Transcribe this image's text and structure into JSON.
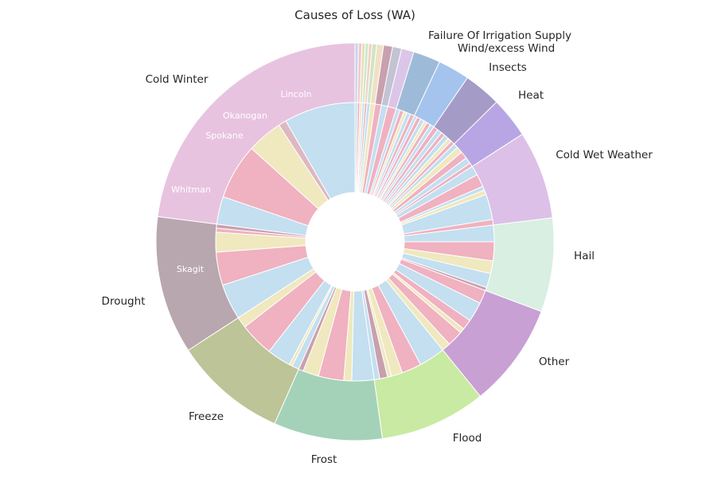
{
  "chart_data": {
    "type": "pie",
    "title": "Causes of Loss (WA)",
    "outer_ring": [
      {
        "label": "Cold Winter",
        "value": 25.0,
        "color": "#e8c3e0"
      },
      {
        "label": "Drought",
        "value": 12.2,
        "color": "#b8a7ae"
      },
      {
        "label": "Freeze",
        "value": 10.0,
        "color": "#bcc498"
      },
      {
        "label": "Frost",
        "value": 9.6,
        "color": "#a4d2b9"
      },
      {
        "label": "Flood",
        "value": 9.4,
        "color": "#c9eaa2"
      },
      {
        "label": "Other",
        "value": 9.2,
        "color": "#c8a0d4"
      },
      {
        "label": "Hail",
        "value": 8.3,
        "color": "#d8efe2"
      },
      {
        "label": "Cold Wet Weather",
        "value": 7.8,
        "color": "#dcc0e8"
      },
      {
        "label": "Heat",
        "value": 3.6,
        "color": "#b8a6e4"
      },
      {
        "label": "Insects",
        "value": 3.3,
        "color": "#a59bc7"
      },
      {
        "label": "Wind/excess Wind",
        "value": 2.8,
        "color": "#a4c4ee"
      },
      {
        "label": "Failure Of Irrigation Supply",
        "value": 2.4,
        "color": "#9dbbd8"
      },
      {
        "label": "",
        "value": 1.1,
        "color": "#dbc6e8"
      },
      {
        "label": "",
        "value": 0.8,
        "color": "#c3c3d4"
      },
      {
        "label": "",
        "value": 0.8,
        "color": "#c9a0ae"
      },
      {
        "label": "",
        "value": 0.6,
        "color": "#f0e1c6"
      },
      {
        "label": "",
        "value": 0.4,
        "color": "#cfe5c4"
      },
      {
        "label": "",
        "value": 0.3,
        "color": "#f0d2c2"
      },
      {
        "label": "",
        "value": 0.3,
        "color": "#cde8cf"
      },
      {
        "label": "",
        "value": 0.3,
        "color": "#e6e2b4"
      },
      {
        "label": "",
        "value": 0.3,
        "color": "#f0c6d0"
      },
      {
        "label": "",
        "value": 0.3,
        "color": "#c8d6ea"
      }
    ],
    "inner_ring": {
      "colors": {
        "blue": "#c3dff0",
        "pink": "#f0b1c0",
        "yellow": "#f0e8be",
        "mauve": "#c9a0ae",
        "rose": "#deb8c0",
        "grey": "#c8c8d8",
        "lavender": "#dcc8e8"
      },
      "groups": [
        [
          [
            "Lincoln",
            9.0,
            "blue"
          ],
          [
            "",
            1.0,
            "rose"
          ],
          [
            "Okanogan",
            4.5,
            "yellow"
          ],
          [
            "Spokane",
            7.0,
            "pink"
          ],
          [
            "Whitman",
            3.5,
            "blue"
          ]
        ],
        [
          [
            "",
            0.5,
            "mauve"
          ],
          [
            "",
            0.5,
            "pink"
          ],
          [
            "Skagit",
            2.5,
            "yellow"
          ],
          [
            "",
            4.2,
            "pink"
          ],
          [
            "",
            4.5,
            "blue"
          ]
        ],
        [
          [
            "",
            1.4,
            "yellow"
          ],
          [
            "",
            4.3,
            "pink"
          ],
          [
            "",
            3.0,
            "blue"
          ],
          [
            "",
            0.4,
            "yellow"
          ],
          [
            "",
            0.9,
            "blue"
          ]
        ],
        [
          [
            "",
            0.6,
            "mauve"
          ],
          [
            "",
            2.0,
            "yellow"
          ],
          [
            "",
            3.2,
            "pink"
          ],
          [
            "",
            1.0,
            "yellow"
          ],
          [
            "",
            2.8,
            "blue"
          ]
        ],
        [
          [
            "",
            0.7,
            "blue"
          ],
          [
            "",
            1.0,
            "mauve"
          ],
          [
            "",
            0.5,
            "yellow"
          ],
          [
            "",
            1.4,
            "yellow"
          ],
          [
            "",
            2.5,
            "pink"
          ],
          [
            "",
            3.3,
            "blue"
          ]
        ],
        [
          [
            "",
            1.1,
            "yellow"
          ],
          [
            "",
            2.0,
            "pink"
          ],
          [
            "",
            0.6,
            "yellow"
          ],
          [
            "",
            1.3,
            "pink"
          ],
          [
            "",
            2.5,
            "blue"
          ],
          [
            "",
            1.7,
            "pink"
          ]
        ],
        [
          [
            "",
            0.4,
            "mauve"
          ],
          [
            "",
            1.8,
            "blue"
          ],
          [
            "",
            1.6,
            "yellow"
          ],
          [
            "",
            2.4,
            "pink"
          ],
          [
            "",
            2.1,
            "blue"
          ]
        ],
        [
          [
            "",
            0.7,
            "pink"
          ],
          [
            "",
            3.2,
            "blue"
          ],
          [
            "",
            0.6,
            "yellow"
          ],
          [
            "",
            0.5,
            "blue"
          ],
          [
            "",
            1.6,
            "pink"
          ],
          [
            "",
            1.2,
            "blue"
          ]
        ],
        [
          [
            "",
            0.5,
            "pink"
          ],
          [
            "",
            0.8,
            "blue"
          ],
          [
            "",
            0.9,
            "pink"
          ],
          [
            "",
            0.8,
            "yellow"
          ],
          [
            "",
            0.6,
            "blue"
          ]
        ],
        [
          [
            "",
            0.5,
            "pink"
          ],
          [
            "",
            0.5,
            "yellow"
          ],
          [
            "",
            0.6,
            "blue"
          ],
          [
            "",
            0.5,
            "pink"
          ],
          [
            "",
            0.6,
            "blue"
          ],
          [
            "",
            0.6,
            "pink"
          ]
        ],
        [
          [
            "",
            0.5,
            "blue"
          ],
          [
            "",
            0.5,
            "pink"
          ],
          [
            "",
            0.4,
            "yellow"
          ],
          [
            "",
            0.5,
            "blue"
          ],
          [
            "",
            0.5,
            "pink"
          ],
          [
            "",
            0.4,
            "blue"
          ]
        ],
        [
          [
            "",
            0.5,
            "pink"
          ],
          [
            "",
            0.5,
            "blue"
          ],
          [
            "",
            0.4,
            "yellow"
          ],
          [
            "",
            0.5,
            "pink"
          ],
          [
            "",
            0.5,
            "blue"
          ]
        ],
        [
          [
            "",
            1.1,
            "pink"
          ]
        ],
        [
          [
            "",
            0.8,
            "blue"
          ]
        ],
        [
          [
            "",
            0.8,
            "pink"
          ]
        ],
        [
          [
            "",
            0.6,
            "yellow"
          ]
        ],
        [
          [
            "",
            0.4,
            "blue"
          ]
        ],
        [
          [
            "",
            0.3,
            "pink"
          ]
        ],
        [
          [
            "",
            0.3,
            "blue"
          ]
        ],
        [
          [
            "",
            0.3,
            "yellow"
          ]
        ],
        [
          [
            "",
            0.3,
            "pink"
          ]
        ],
        [
          [
            "",
            0.3,
            "blue"
          ]
        ]
      ]
    }
  }
}
